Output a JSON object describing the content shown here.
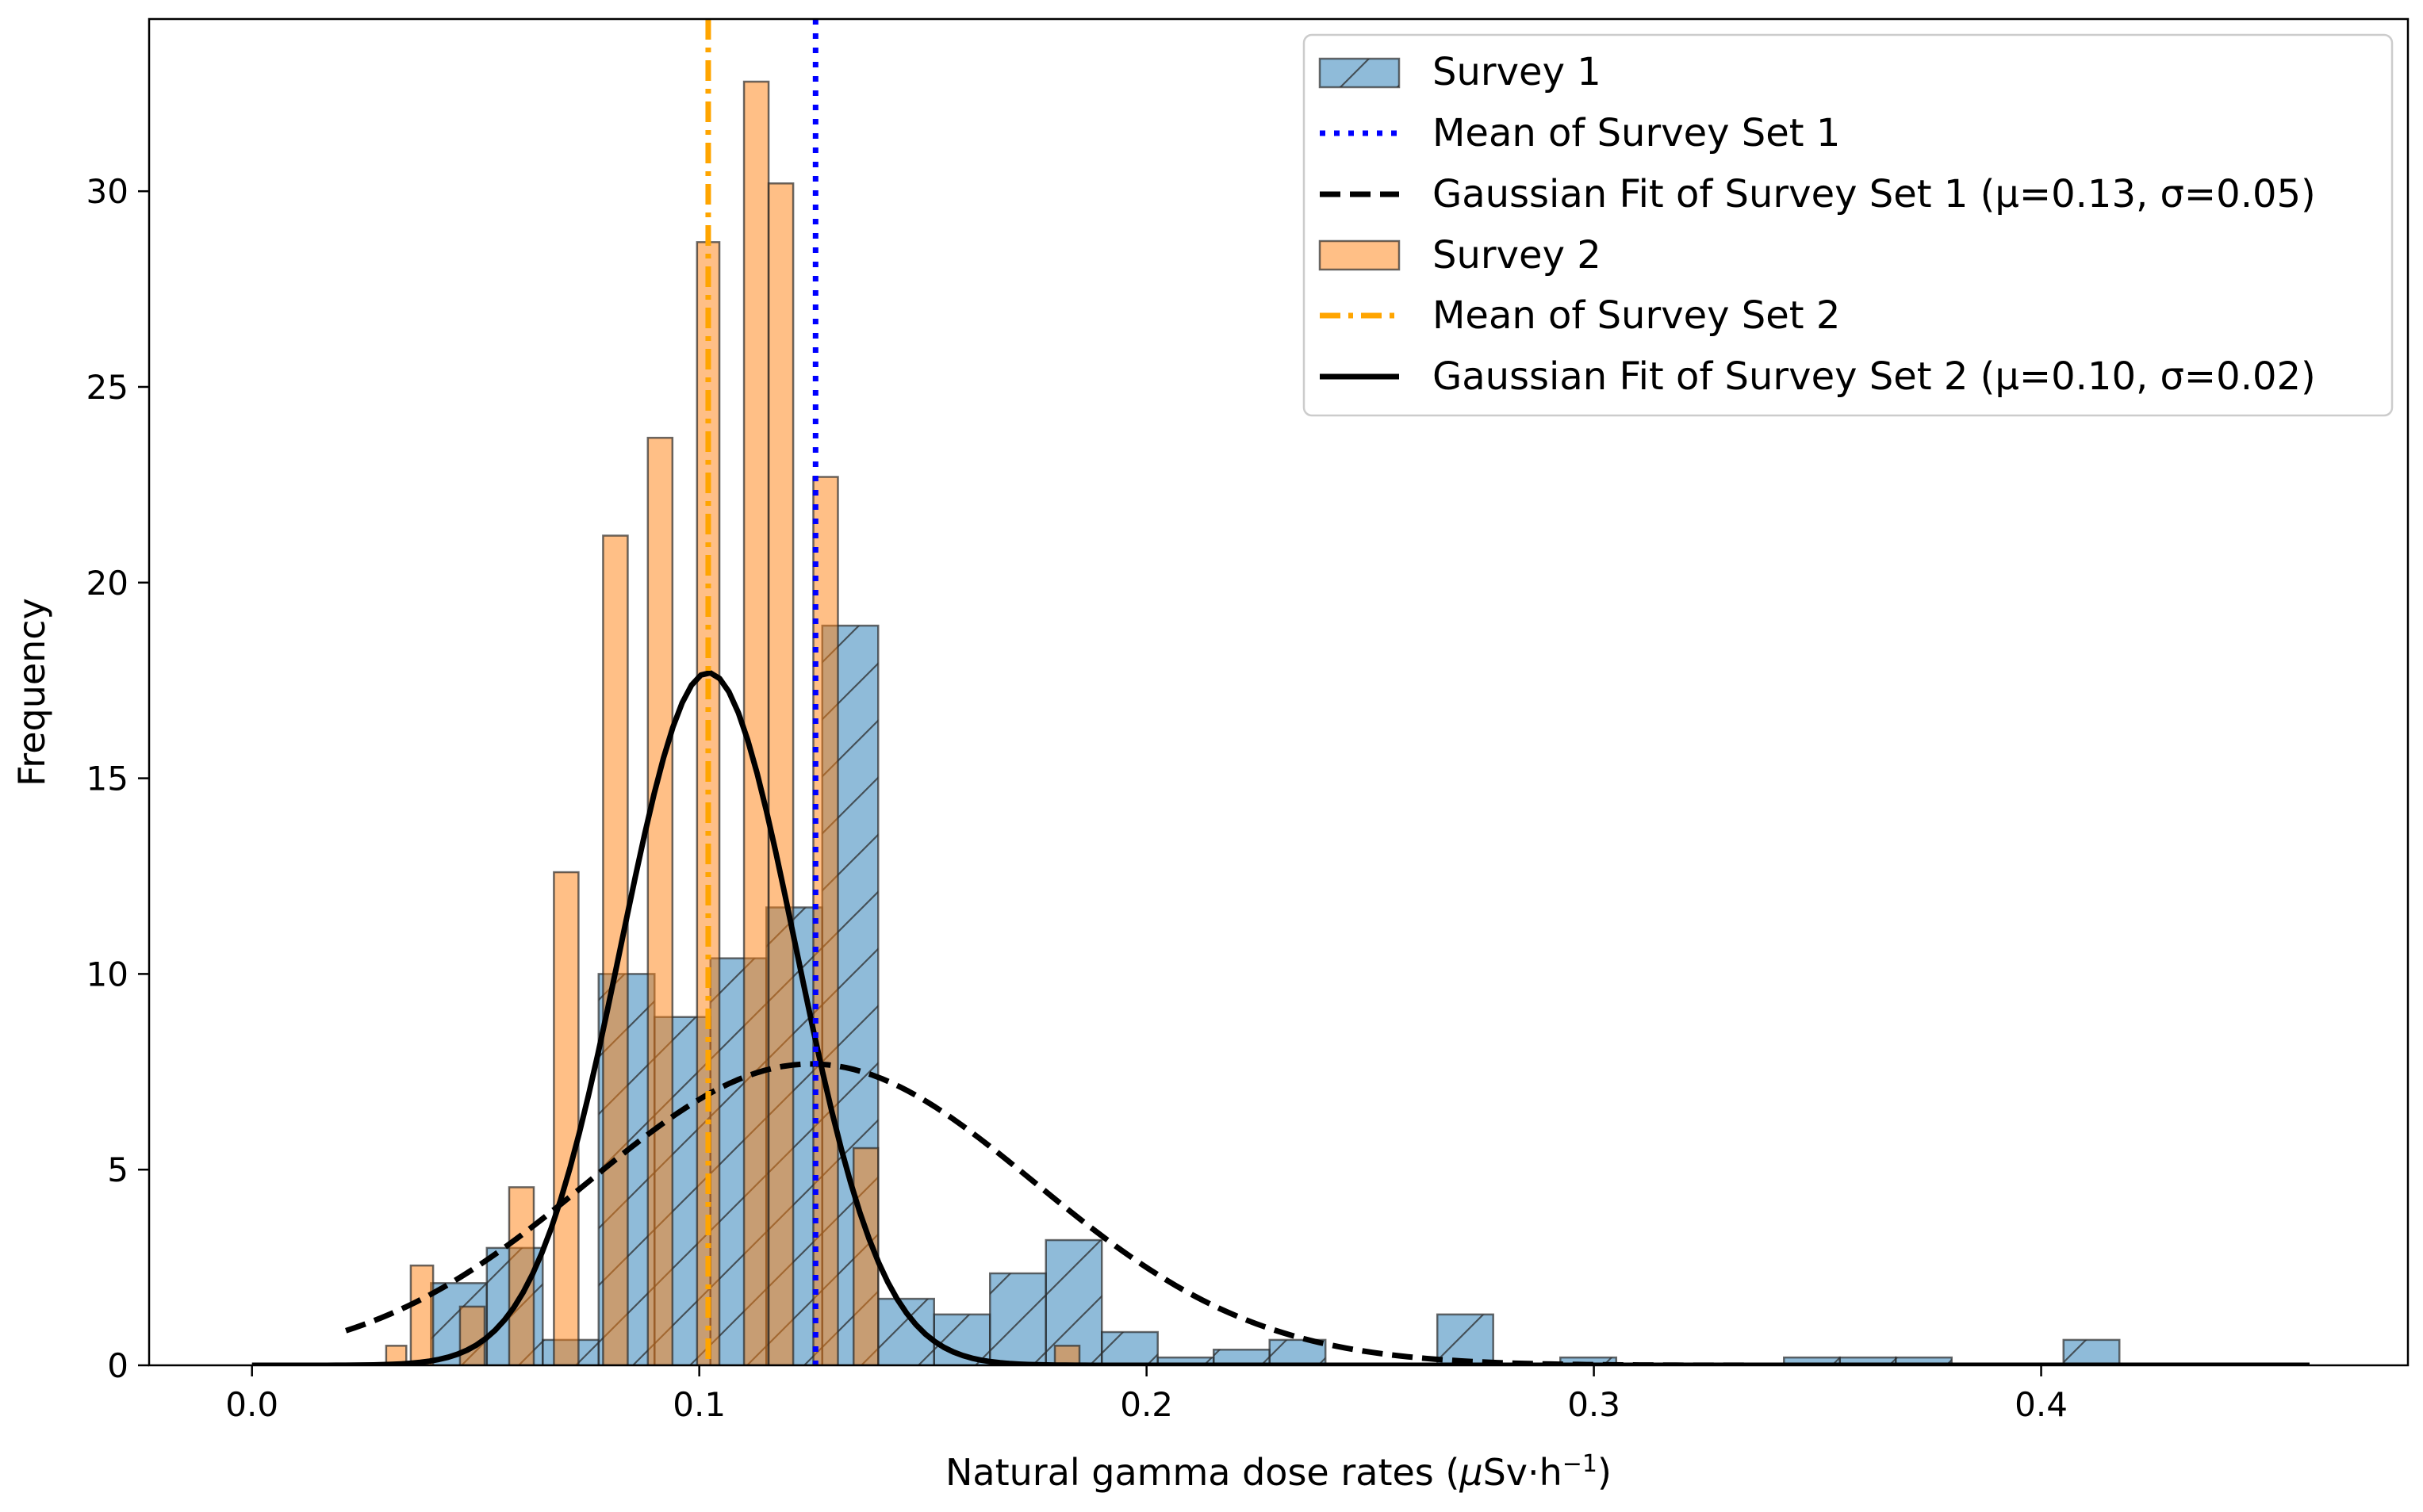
{
  "chart_data": {
    "type": "bar",
    "title": "",
    "xlabel_main": "Natural gamma dose rates (",
    "xlabel_mu": "μ",
    "xlabel_unit": "Sv·h",
    "xlabel_exp": "−1",
    "xlabel_close": ")",
    "ylabel": "Frequency",
    "xlim": [
      -0.023,
      0.482
    ],
    "ylim": [
      0,
      34.4
    ],
    "x_ticks": [
      0.0,
      0.1,
      0.2,
      0.3,
      0.4
    ],
    "x_tick_labels": [
      "0.0",
      "0.1",
      "0.2",
      "0.3",
      "0.4"
    ],
    "y_ticks": [
      0,
      5,
      10,
      15,
      20,
      25,
      30
    ],
    "y_tick_labels": [
      "0",
      "5",
      "10",
      "15",
      "20",
      "25",
      "30"
    ],
    "series": [
      {
        "name": "Survey 1",
        "kind": "histogram",
        "color": "#1f77b4",
        "hatch": "/",
        "bins": [
          {
            "x0": 0.04,
            "x1": 0.0525,
            "count": 2.1
          },
          {
            "x0": 0.0525,
            "x1": 0.065,
            "count": 3.0
          },
          {
            "x0": 0.065,
            "x1": 0.0775,
            "count": 0.65
          },
          {
            "x0": 0.0775,
            "x1": 0.09,
            "count": 10.0
          },
          {
            "x0": 0.09,
            "x1": 0.1025,
            "count": 8.9
          },
          {
            "x0": 0.1025,
            "x1": 0.115,
            "count": 10.4
          },
          {
            "x0": 0.115,
            "x1": 0.1275,
            "count": 11.7
          },
          {
            "x0": 0.1275,
            "x1": 0.14,
            "count": 18.9
          },
          {
            "x0": 0.14,
            "x1": 0.1525,
            "count": 1.7
          },
          {
            "x0": 0.1525,
            "x1": 0.165,
            "count": 1.3
          },
          {
            "x0": 0.165,
            "x1": 0.1775,
            "count": 2.35
          },
          {
            "x0": 0.1775,
            "x1": 0.19,
            "count": 3.2
          },
          {
            "x0": 0.19,
            "x1": 0.2025,
            "count": 0.85
          },
          {
            "x0": 0.2025,
            "x1": 0.215,
            "count": 0.2
          },
          {
            "x0": 0.215,
            "x1": 0.2275,
            "count": 0.4
          },
          {
            "x0": 0.2275,
            "x1": 0.24,
            "count": 0.65
          },
          {
            "x0": 0.265,
            "x1": 0.2775,
            "count": 1.3
          },
          {
            "x0": 0.2925,
            "x1": 0.305,
            "count": 0.2
          },
          {
            "x0": 0.3425,
            "x1": 0.355,
            "count": 0.2
          },
          {
            "x0": 0.355,
            "x1": 0.3675,
            "count": 0.2
          },
          {
            "x0": 0.3675,
            "x1": 0.38,
            "count": 0.2
          },
          {
            "x0": 0.405,
            "x1": 0.4175,
            "count": 0.65
          }
        ]
      },
      {
        "name": "Survey 2",
        "kind": "histogram",
        "color": "#ff7f0e",
        "hatch": "",
        "bins": [
          {
            "x0": 0.03,
            "x1": 0.0345,
            "count": 0.5
          },
          {
            "x0": 0.0355,
            "x1": 0.0405,
            "count": 2.55
          },
          {
            "x0": 0.0465,
            "x1": 0.052,
            "count": 1.5
          },
          {
            "x0": 0.0575,
            "x1": 0.063,
            "count": 4.55
          },
          {
            "x0": 0.0675,
            "x1": 0.073,
            "count": 12.6
          },
          {
            "x0": 0.0785,
            "x1": 0.084,
            "count": 21.2
          },
          {
            "x0": 0.0885,
            "x1": 0.094,
            "count": 23.7
          },
          {
            "x0": 0.0995,
            "x1": 0.1045,
            "count": 28.7
          },
          {
            "x0": 0.11,
            "x1": 0.1155,
            "count": 32.8
          },
          {
            "x0": 0.1155,
            "x1": 0.121,
            "count": 30.2
          },
          {
            "x0": 0.1255,
            "x1": 0.131,
            "count": 22.7
          },
          {
            "x0": 0.1345,
            "x1": 0.14,
            "count": 5.55
          },
          {
            "x0": 0.1795,
            "x1": 0.185,
            "count": 0.5
          }
        ]
      },
      {
        "name": "Mean of Survey Set 1",
        "kind": "vline",
        "x": 0.126,
        "color": "#0000ff",
        "style": "dotted"
      },
      {
        "name": "Mean of Survey Set 2",
        "kind": "vline",
        "x": 0.102,
        "color": "#ffa500",
        "style": "dashdot"
      },
      {
        "name": "Gaussian Fit of Survey Set 1 (μ=0.13, σ=0.05)",
        "kind": "gaussian",
        "mu": 0.125,
        "sigma": 0.05,
        "peak": 7.7,
        "x_range": [
          0.021,
          0.46
        ],
        "color": "#000000",
        "style": "dashed"
      },
      {
        "name": "Gaussian Fit of Survey Set 2 (μ=0.10, σ=0.02)",
        "kind": "gaussian",
        "mu": 0.102,
        "sigma": 0.0195,
        "peak": 17.7,
        "x_range": [
          0.0,
          0.46
        ],
        "color": "#000000",
        "style": "solid"
      }
    ],
    "legend": {
      "position": "top-right",
      "entries": [
        {
          "label": "Survey 1",
          "marker": "patch-blue-hatched"
        },
        {
          "label": "Mean of Survey Set 1",
          "marker": "line-blue-dotted"
        },
        {
          "label": "Gaussian Fit of Survey Set 1 (μ=0.13, σ=0.05)",
          "marker": "line-black-dashed"
        },
        {
          "label": "Survey 2",
          "marker": "patch-orange"
        },
        {
          "label": "Mean of Survey Set 2",
          "marker": "line-orange-dashdot"
        },
        {
          "label": "Gaussian Fit of Survey Set 2 (μ=0.10, σ=0.02)",
          "marker": "line-black-solid"
        }
      ]
    },
    "grid": false
  }
}
